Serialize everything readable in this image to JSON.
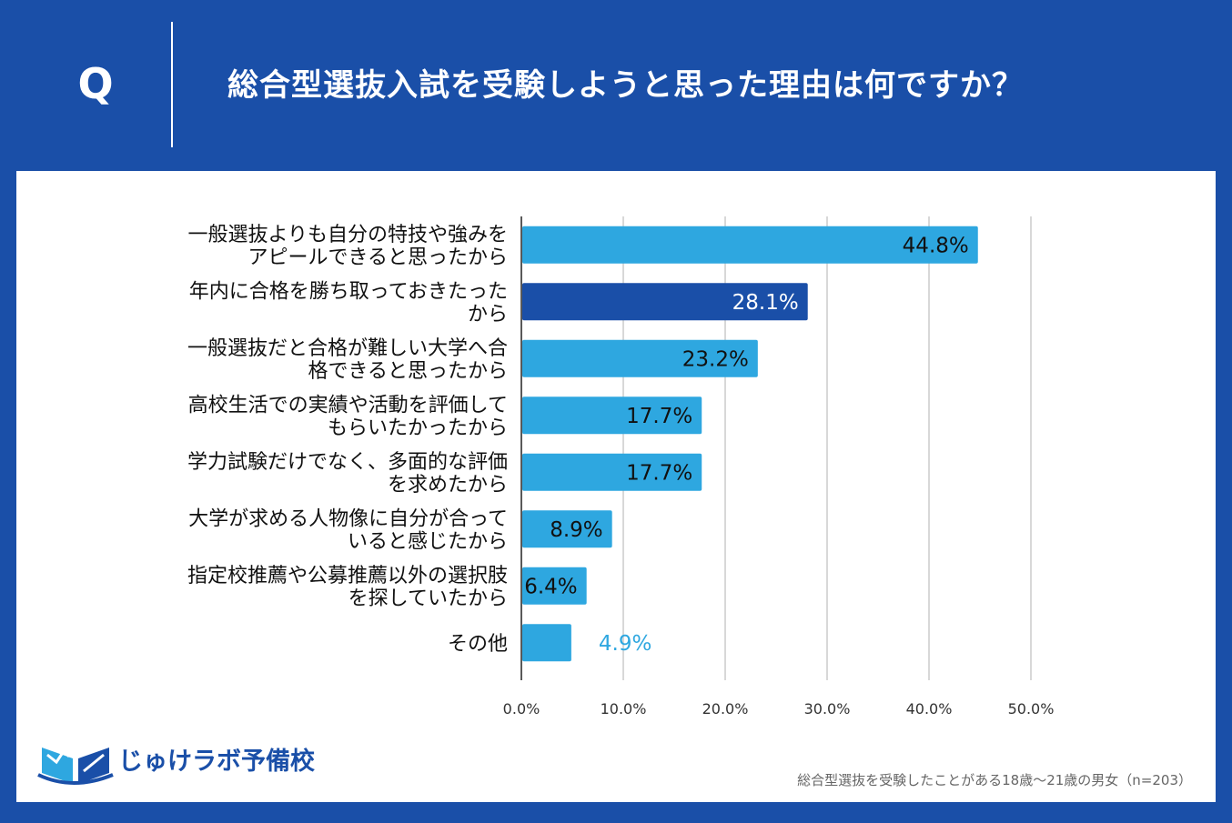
{
  "header": {
    "q_letter": "Q",
    "question": "総合型選抜入試を受験しようと思った理由は何ですか？"
  },
  "colors": {
    "background": "#1a4fa8",
    "bar": "#2ea7e0",
    "bar_highlight": "#1a4fa8",
    "grid": "#cccccc"
  },
  "chart_data": {
    "type": "bar",
    "orientation": "horizontal",
    "categories": [
      [
        "一般選抜よりも自分の特技や強みを",
        "アピールできると思ったから"
      ],
      [
        "年内に合格を勝ち取っておきたった",
        "から"
      ],
      [
        "一般選抜だと合格が難しい大学へ合",
        "格できると思ったから"
      ],
      [
        "高校生活での実績や活動を評価して",
        "もらいたかったから"
      ],
      [
        "学力試験だけでなく、多面的な評価",
        "を求めたから"
      ],
      [
        "大学が求める人物像に自分が合って",
        "いると感じたから"
      ],
      [
        "指定校推薦や公募推薦以外の選択肢",
        "を探していたから"
      ],
      [
        "その他"
      ]
    ],
    "values": [
      44.8,
      28.1,
      23.2,
      17.7,
      17.7,
      8.9,
      6.4,
      4.9
    ],
    "value_labels": [
      "44.8%",
      "28.1%",
      "23.2%",
      "17.7%",
      "17.7%",
      "8.9%",
      "6.4%",
      "4.9%"
    ],
    "highlight_index": 1,
    "xlim": [
      0,
      50
    ],
    "xticks": [
      "0.0%",
      "10.0%",
      "20.0%",
      "30.0%",
      "40.0%",
      "50.0%"
    ],
    "grid": true
  },
  "footer": {
    "logo_text": "じゅけラボ予備校",
    "note": "総合型選抜を受験したことがある18歳～21歳の男女（n=203）"
  }
}
